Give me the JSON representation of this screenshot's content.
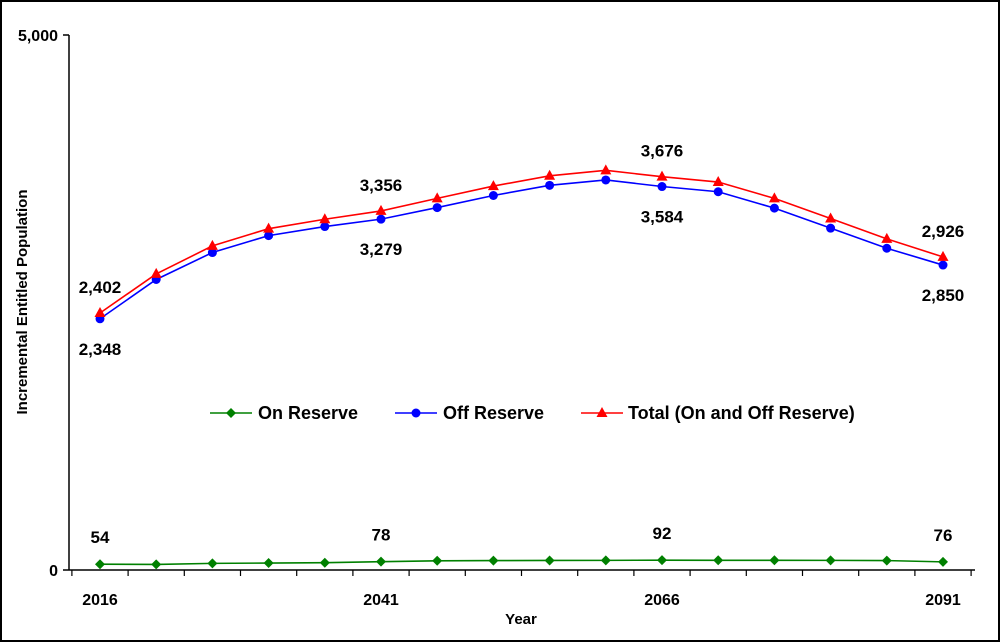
{
  "chart_data": {
    "type": "line",
    "title": "",
    "xlabel": "Year",
    "ylabel": "Incremental Entitled Population",
    "ylim": [
      0,
      5000
    ],
    "y_tick_labels": [
      "0",
      "5,000"
    ],
    "x_tick_labels": [
      "2016",
      "2041",
      "2066",
      "2091"
    ],
    "x": [
      2016,
      2021,
      2026,
      2031,
      2036,
      2041,
      2046,
      2051,
      2056,
      2061,
      2066,
      2071,
      2076,
      2081,
      2086,
      2091
    ],
    "grid": false,
    "legend_position": "center",
    "series": [
      {
        "name": "On Reserve",
        "color": "#008000",
        "marker": "diamond",
        "values": [
          54,
          52,
          62,
          65,
          68,
          78,
          86,
          88,
          89,
          90,
          92,
          91,
          91,
          90,
          88,
          76
        ]
      },
      {
        "name": "Off Reserve",
        "color": "#0000ff",
        "marker": "circle",
        "values": [
          2348,
          2715,
          2967,
          3125,
          3210,
          3279,
          3387,
          3500,
          3595,
          3645,
          3584,
          3535,
          3382,
          3195,
          3007,
          2850
        ]
      },
      {
        "name": "Total (On and Off Reserve)",
        "color": "#ff0000",
        "marker": "triangle",
        "values": [
          2402,
          2767,
          3029,
          3190,
          3278,
          3356,
          3473,
          3588,
          3684,
          3735,
          3676,
          3626,
          3473,
          3285,
          3095,
          2926
        ]
      }
    ],
    "data_labels": [
      {
        "text": "2,402",
        "series": 2,
        "index": 0
      },
      {
        "text": "2,348",
        "series": 1,
        "index": 0
      },
      {
        "text": "3,356",
        "series": 2,
        "index": 5
      },
      {
        "text": "3,279",
        "series": 1,
        "index": 5
      },
      {
        "text": "3,676",
        "series": 2,
        "index": 10
      },
      {
        "text": "3,584",
        "series": 1,
        "index": 10
      },
      {
        "text": "2,926",
        "series": 2,
        "index": 15
      },
      {
        "text": "2,850",
        "series": 1,
        "index": 15
      },
      {
        "text": "54",
        "series": 0,
        "index": 0
      },
      {
        "text": "78",
        "series": 0,
        "index": 5
      },
      {
        "text": "92",
        "series": 0,
        "index": 10
      },
      {
        "text": "76",
        "series": 0,
        "index": 15
      }
    ]
  }
}
